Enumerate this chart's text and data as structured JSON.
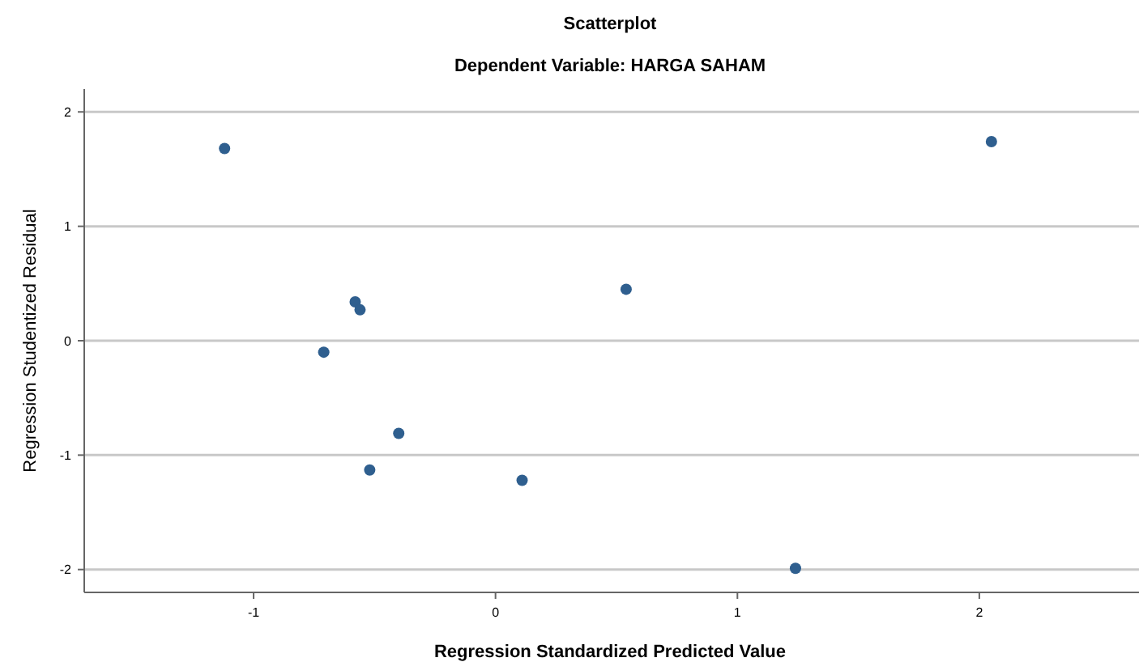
{
  "chart_data": {
    "type": "scatter",
    "title": "Scatterplot",
    "subtitle": "Dependent Variable: HARGA SAHAM",
    "xlabel": "Regression Standardized Predicted Value",
    "ylabel": "Regression Studentized Residual",
    "x": [
      -1.12,
      -0.58,
      -0.56,
      -0.71,
      -0.4,
      -0.52,
      0.11,
      0.54,
      1.24,
      2.05
    ],
    "series": [
      {
        "color": "#2f5f8f",
        "values": [
          1.68,
          0.34,
          0.27,
          -0.1,
          -0.81,
          -1.13,
          -1.22,
          0.45,
          -1.99,
          1.74
        ]
      }
    ],
    "xlim": [
      -1.7,
      2.66
    ],
    "ylim": [
      -2.2,
      2.2
    ],
    "xticks": [
      -1,
      0,
      1,
      2
    ],
    "yticks": [
      -2,
      -1,
      0,
      1,
      2
    ],
    "grid": "y",
    "marker": "circle"
  }
}
